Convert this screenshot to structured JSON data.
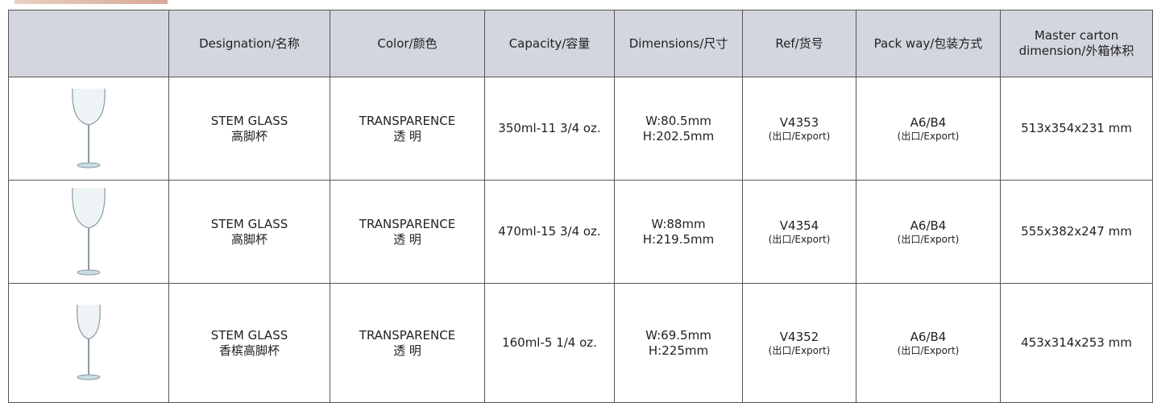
{
  "table": {
    "header": [
      "Designation/名称",
      "Color/颜色",
      "Capacity/容量",
      "Dimensions/尺寸",
      "Ref/货号",
      "Pack way/包装方式",
      [
        "Master carton",
        "dimension/外箱体积"
      ]
    ],
    "rows": [
      {
        "designation": [
          "STEM GLASS",
          "高脚杯"
        ],
        "color": [
          "TRANSPARENCE",
          "透 明"
        ],
        "capacity": "350ml-11 3/4 oz.",
        "dimensions": [
          "W:80.5mm",
          "H:202.5mm"
        ],
        "ref": [
          "V4353",
          "(出口/Export)"
        ],
        "pack": [
          "A6/B4",
          "(出口/Export)"
        ],
        "carton": "513x354x231 mm"
      },
      {
        "designation": [
          "STEM GLASS",
          "高脚杯"
        ],
        "color": [
          "TRANSPARENCE",
          "透 明"
        ],
        "capacity": "470ml-15 3/4 oz.",
        "dimensions": [
          "W:88mm",
          "H:219.5mm"
        ],
        "ref": [
          "V4354",
          "(出口/Export)"
        ],
        "pack": [
          "A6/B4",
          "(出口/Export)"
        ],
        "carton": "555x382x247 mm"
      },
      {
        "designation": [
          "STEM GLASS",
          "香槟高脚杯"
        ],
        "color": [
          "TRANSPARENCE",
          "透 明"
        ],
        "capacity": "160ml-5 1/4 oz.",
        "dimensions": [
          "W:69.5mm",
          "H:225mm"
        ],
        "ref": [
          "V4352",
          "(出口/Export)"
        ],
        "pack": [
          "A6/B4",
          "(出口/Export)"
        ],
        "carton": "453x314x253 mm"
      }
    ]
  }
}
